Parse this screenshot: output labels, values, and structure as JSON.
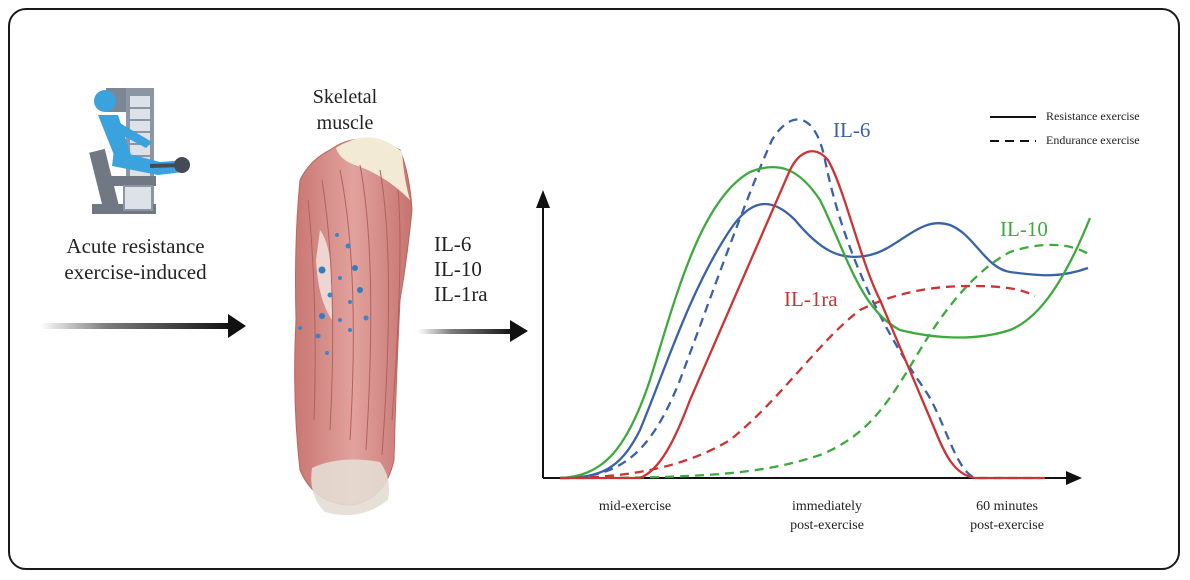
{
  "left": {
    "label_lines": [
      "Acute resistance",
      "exercise-induced"
    ],
    "icon": "leg-extension-machine-icon"
  },
  "muscle": {
    "label_lines": [
      "Skeletal",
      "muscle"
    ],
    "illustration": "thigh-muscle-illustration"
  },
  "cytokines": [
    "IL-6",
    "IL-10",
    "IL-1ra"
  ],
  "colors": {
    "il6": "#3a62a8",
    "il10": "#3daa3d",
    "il1ra": "#cc3333",
    "axis": "#111111",
    "muscle": "#d98c88"
  },
  "chart_data": {
    "type": "line",
    "title": "",
    "xlabel": "",
    "ylabel": "",
    "x_ticks": [
      {
        "lines": [
          "mid-exercise"
        ]
      },
      {
        "lines": [
          "immediately",
          "post-exercise"
        ]
      },
      {
        "lines": [
          "60 minutes",
          "post-exercise"
        ]
      }
    ],
    "legend": {
      "placement": "top-right",
      "items": [
        {
          "label": "Resistance exercise",
          "style": "solid"
        },
        {
          "label": "Endurance exercise",
          "style": "dashed"
        }
      ]
    },
    "series_labels": {
      "il6": "IL-6",
      "il10": "IL-10",
      "il1ra": "IL-1ra"
    }
  }
}
